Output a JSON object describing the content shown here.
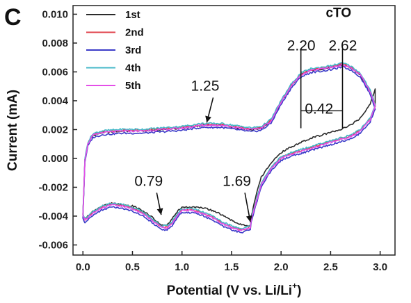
{
  "panel_label": "C",
  "chart_data": {
    "type": "line",
    "title": "",
    "xlabel": "Potential (V vs. Li/Li⁺)",
    "xlabel_main": "Potential (V vs. Li/Li",
    "xlabel_sup": "+",
    "xlabel_end": ")",
    "ylabel": "Current (mA)",
    "xlim": [
      -0.1,
      3.15
    ],
    "ylim": [
      -0.0067,
      0.0106
    ],
    "x_ticks": [
      0.0,
      0.5,
      1.0,
      1.5,
      2.0,
      2.5,
      3.0
    ],
    "x_tick_labels": [
      "0.0",
      "0.5",
      "1.0",
      "1.5",
      "2.0",
      "2.5",
      "3.0"
    ],
    "y_ticks": [
      -0.006,
      -0.004,
      -0.002,
      0.0,
      0.002,
      0.004,
      0.006,
      0.008,
      0.01
    ],
    "y_tick_labels": [
      "-0.006",
      "-0.004",
      "-0.002",
      "0.000",
      "0.002",
      "0.004",
      "0.006",
      "0.008",
      "0.010"
    ],
    "grid": false,
    "legend_position": "top-left",
    "series": [
      {
        "name": "1st",
        "color": "#2b2b2b",
        "first": true,
        "offset": 0.0
      },
      {
        "name": "2nd",
        "color": "#e0404a",
        "first": false,
        "offset": 5e-05
      },
      {
        "name": "3rd",
        "color": "#3a3ac8",
        "first": false,
        "offset": -0.00015
      },
      {
        "name": "4th",
        "color": "#44b8c8",
        "first": false,
        "offset": 0.00012
      },
      {
        "name": "5th",
        "color": "#e44fe8",
        "first": false,
        "offset": 0.0
      }
    ],
    "anodic_branch": [
      [
        0.02,
        -0.0001
      ],
      [
        0.05,
        0.001
      ],
      [
        0.1,
        0.0016
      ],
      [
        0.2,
        0.0018
      ],
      [
        0.4,
        0.0019
      ],
      [
        0.6,
        0.0019
      ],
      [
        0.8,
        0.002
      ],
      [
        1.0,
        0.0021
      ],
      [
        1.1,
        0.0022
      ],
      [
        1.2,
        0.0023
      ],
      [
        1.3,
        0.0023
      ],
      [
        1.4,
        0.0023
      ],
      [
        1.5,
        0.0022
      ],
      [
        1.6,
        0.0021
      ],
      [
        1.7,
        0.002
      ],
      [
        1.8,
        0.0021
      ],
      [
        1.9,
        0.0026
      ],
      [
        2.0,
        0.0039
      ],
      [
        2.1,
        0.005
      ],
      [
        2.2,
        0.0058
      ],
      [
        2.3,
        0.0061
      ],
      [
        2.4,
        0.0062
      ],
      [
        2.5,
        0.0063
      ],
      [
        2.62,
        0.0065
      ],
      [
        2.7,
        0.0063
      ],
      [
        2.8,
        0.0058
      ],
      [
        2.9,
        0.0046
      ],
      [
        2.95,
        0.0036
      ]
    ],
    "cathodic_branch_later": [
      [
        2.95,
        0.0036
      ],
      [
        2.9,
        0.0027
      ],
      [
        2.8,
        0.0019
      ],
      [
        2.7,
        0.0015
      ],
      [
        2.6,
        0.0013
      ],
      [
        2.5,
        0.0011
      ],
      [
        2.4,
        0.0009
      ],
      [
        2.3,
        0.0007
      ],
      [
        2.2,
        0.0005
      ],
      [
        2.1,
        0.0003
      ],
      [
        2.0,
        0.0
      ],
      [
        1.9,
        -0.0007
      ],
      [
        1.8,
        -0.0018
      ],
      [
        1.75,
        -0.003
      ],
      [
        1.7,
        -0.0042
      ],
      [
        1.69,
        -0.0048
      ],
      [
        1.6,
        -0.005
      ],
      [
        1.5,
        -0.0048
      ],
      [
        1.4,
        -0.0045
      ],
      [
        1.3,
        -0.0041
      ],
      [
        1.2,
        -0.0038
      ],
      [
        1.1,
        -0.0036
      ],
      [
        1.0,
        -0.0036
      ],
      [
        0.95,
        -0.004
      ],
      [
        0.9,
        -0.0045
      ],
      [
        0.85,
        -0.0048
      ],
      [
        0.79,
        -0.0048
      ],
      [
        0.7,
        -0.0043
      ],
      [
        0.6,
        -0.0038
      ],
      [
        0.5,
        -0.0035
      ],
      [
        0.4,
        -0.0033
      ],
      [
        0.3,
        -0.0032
      ],
      [
        0.2,
        -0.0034
      ],
      [
        0.1,
        -0.0038
      ],
      [
        0.05,
        -0.0041
      ],
      [
        0.02,
        -0.0043
      ],
      [
        0.0,
        -0.004
      ],
      [
        0.02,
        -0.0001
      ]
    ],
    "cathodic_branch_first": [
      [
        2.97,
        0.0055
      ],
      [
        2.95,
        0.0048
      ],
      [
        2.9,
        0.0038
      ],
      [
        2.8,
        0.0028
      ],
      [
        2.7,
        0.0023
      ],
      [
        2.6,
        0.002
      ],
      [
        2.5,
        0.0018
      ],
      [
        2.4,
        0.0016
      ],
      [
        2.3,
        0.0014
      ],
      [
        2.2,
        0.0011
      ],
      [
        2.1,
        0.0008
      ],
      [
        2.0,
        0.0004
      ],
      [
        1.9,
        -0.0003
      ],
      [
        1.8,
        -0.0013
      ],
      [
        1.75,
        -0.0025
      ],
      [
        1.7,
        -0.004
      ],
      [
        1.69,
        -0.0047
      ],
      [
        1.6,
        -0.0046
      ],
      [
        1.5,
        -0.0043
      ],
      [
        1.4,
        -0.0039
      ],
      [
        1.3,
        -0.0036
      ],
      [
        1.2,
        -0.0034
      ],
      [
        1.1,
        -0.0034
      ],
      [
        1.0,
        -0.0034
      ],
      [
        0.95,
        -0.0037
      ],
      [
        0.9,
        -0.0042
      ],
      [
        0.85,
        -0.0046
      ],
      [
        0.79,
        -0.0046
      ],
      [
        0.7,
        -0.0041
      ],
      [
        0.6,
        -0.0036
      ],
      [
        0.5,
        -0.0033
      ],
      [
        0.4,
        -0.0032
      ],
      [
        0.3,
        -0.0031
      ],
      [
        0.2,
        -0.0033
      ],
      [
        0.1,
        -0.0037
      ],
      [
        0.05,
        -0.004
      ],
      [
        0.02,
        -0.0042
      ],
      [
        0.0,
        -0.0039
      ],
      [
        0.02,
        -0.0001
      ]
    ],
    "annotations": [
      {
        "text": "1.25",
        "x": 1.25,
        "y": 0.0022,
        "text_x": 1.09,
        "text_y": 0.0047,
        "arrow": true
      },
      {
        "text": "0.79",
        "x": 0.79,
        "y": -0.0042,
        "text_x": 0.52,
        "text_y": -0.0019,
        "arrow": true
      },
      {
        "text": "1.69",
        "x": 1.69,
        "y": -0.0047,
        "text_x": 1.41,
        "text_y": -0.0019,
        "arrow": true
      },
      {
        "text": "2.20",
        "x": 2.2,
        "y": 0.0078,
        "text_x": 2.06,
        "text_y": 0.0075
      },
      {
        "text": "2.62",
        "x": 2.62,
        "y": 0.0078,
        "text_x": 2.48,
        "text_y": 0.0075
      },
      {
        "text": "0.42",
        "x": 2.41,
        "y": 0.0038,
        "text_x": 2.24,
        "text_y": 0.0031
      }
    ],
    "label_cto": "cTO",
    "bracket": {
      "x1": 2.2,
      "x2": 2.62,
      "y_top": 0.0076,
      "y_mid": 0.0047,
      "y_bottom": 0.0033
    }
  }
}
